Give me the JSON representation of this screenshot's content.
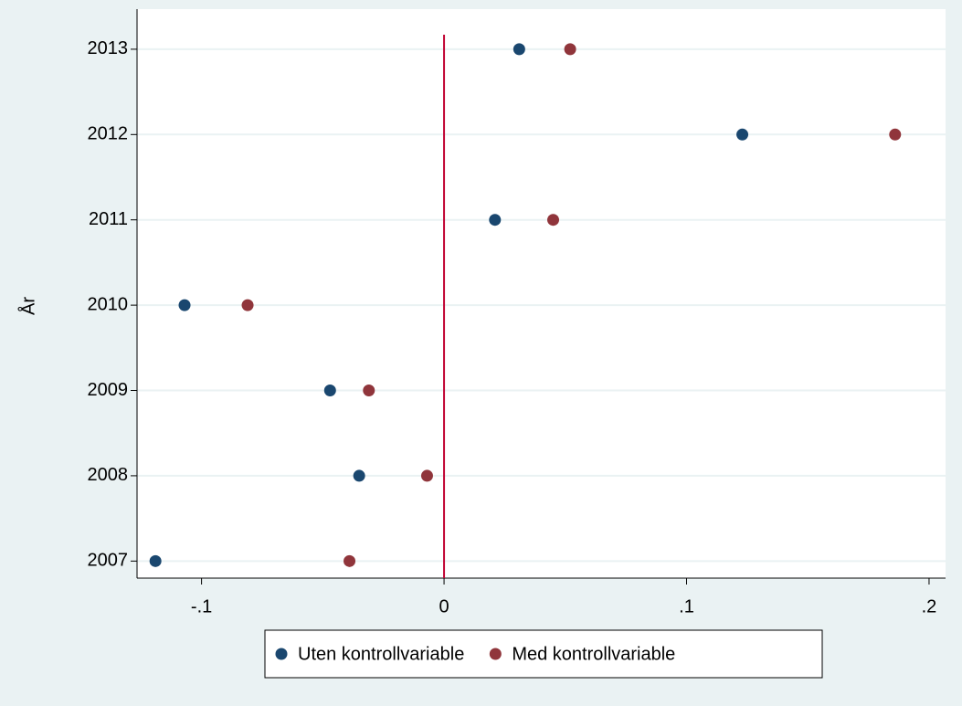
{
  "chart_data": {
    "type": "dotplot",
    "y_label": "År",
    "y": [
      2007,
      2008,
      2009,
      2010,
      2011,
      2012,
      2013
    ],
    "series": [
      {
        "name": "Uten kontrollvariable",
        "color": "#1a476f",
        "values": [
          -0.119,
          -0.035,
          -0.047,
          -0.107,
          0.021,
          0.123,
          0.031
        ]
      },
      {
        "name": "Med kontrollvariable",
        "color": "#90353b",
        "values": [
          -0.039,
          -0.007,
          -0.031,
          -0.081,
          0.045,
          0.186,
          0.052
        ]
      }
    ],
    "xlim": [
      -0.1266,
      0.2068
    ],
    "xticks": [
      {
        "value": -0.1,
        "label": "-.1"
      },
      0,
      {
        "value": 0.1,
        "label": ".1"
      },
      {
        "value": 0.2,
        "label": ".2"
      }
    ],
    "ylim": [
      2006.8,
      2013.47
    ],
    "yticks": [
      2007,
      2008,
      2009,
      2010,
      2011,
      2012,
      2013
    ],
    "grid": true,
    "reference_line_x": 0,
    "reference_line_color": "#c10534",
    "legend": "bottom"
  }
}
